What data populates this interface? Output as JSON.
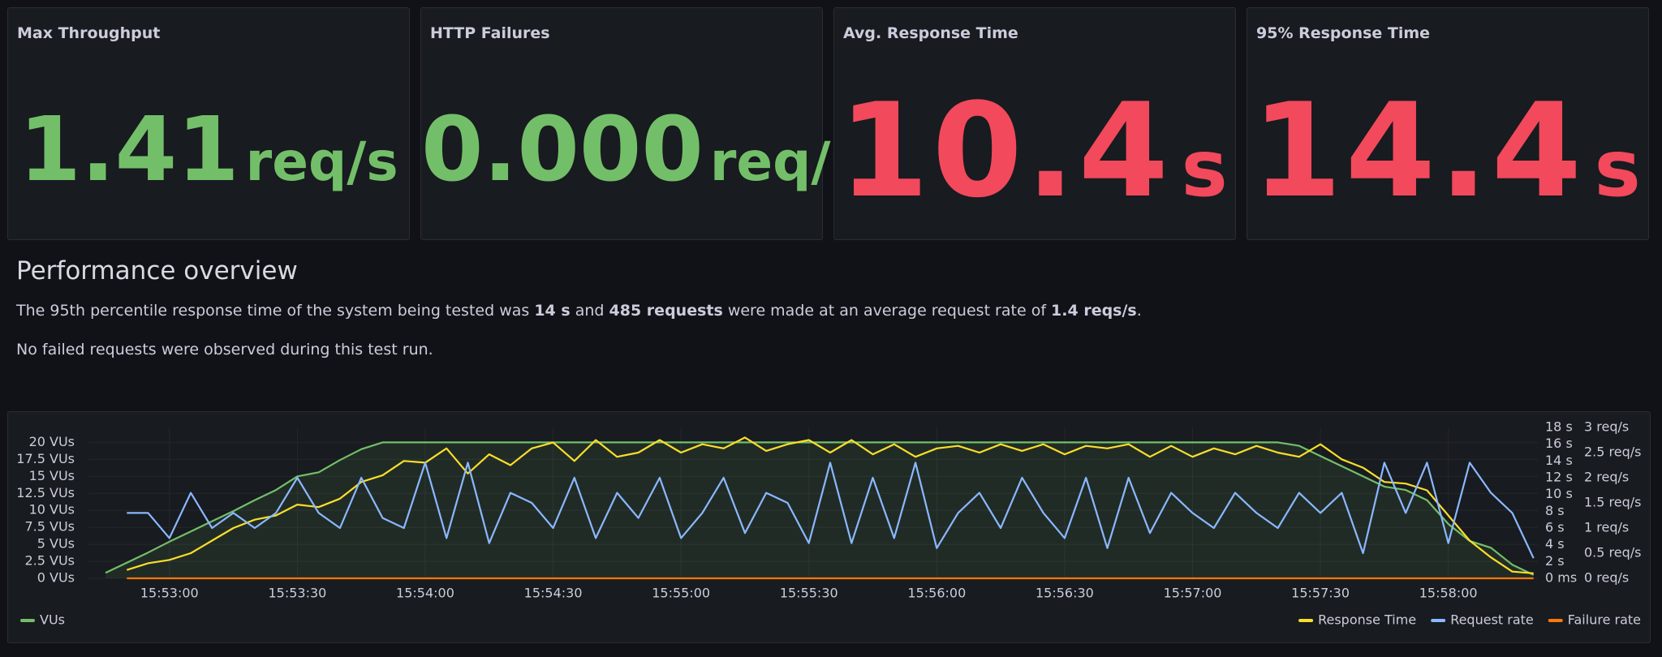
{
  "panels": [
    {
      "title": "Max Throughput",
      "value": "1.41",
      "unit": "req/s",
      "color": "#73bf69"
    },
    {
      "title": "HTTP Failures",
      "value": "0.000",
      "unit": "req/s",
      "color": "#73bf69"
    },
    {
      "title": "Avg. Response Time",
      "value": "10.4",
      "unit": "s",
      "color": "#f2495c"
    },
    {
      "title": "95% Response Time",
      "value": "14.4",
      "unit": "s",
      "color": "#f2495c"
    }
  ],
  "text": {
    "heading": "Performance overview",
    "paragraphs": [
      {
        "segments": [
          {
            "text": "The 95th percentile response time of the system being tested was ",
            "bold": false
          },
          {
            "text": "14 s",
            "bold": true
          },
          {
            "text": " and ",
            "bold": false
          },
          {
            "text": "485 requests",
            "bold": true
          },
          {
            "text": " were made at an average request rate of ",
            "bold": false
          },
          {
            "text": "1.4 reqs/s",
            "bold": true
          },
          {
            "text": ".",
            "bold": false
          }
        ]
      },
      {
        "segments": [
          {
            "text": "No failed requests were observed during this test run.",
            "bold": false
          }
        ]
      }
    ]
  },
  "chart_data": {
    "type": "line",
    "x": [
      "15:52:45",
      "15:52:50",
      "15:52:55",
      "15:53:00",
      "15:53:05",
      "15:53:10",
      "15:53:15",
      "15:53:20",
      "15:53:25",
      "15:53:30",
      "15:53:35",
      "15:53:40",
      "15:53:45",
      "15:53:50",
      "15:53:55",
      "15:54:00",
      "15:54:05",
      "15:54:10",
      "15:54:15",
      "15:54:20",
      "15:54:25",
      "15:54:30",
      "15:54:35",
      "15:54:40",
      "15:54:45",
      "15:54:50",
      "15:54:55",
      "15:55:00",
      "15:55:05",
      "15:55:10",
      "15:55:15",
      "15:55:20",
      "15:55:25",
      "15:55:30",
      "15:55:35",
      "15:55:40",
      "15:55:45",
      "15:55:50",
      "15:55:55",
      "15:56:00",
      "15:56:05",
      "15:56:10",
      "15:56:15",
      "15:56:20",
      "15:56:25",
      "15:56:30",
      "15:56:35",
      "15:56:40",
      "15:56:45",
      "15:56:50",
      "15:56:55",
      "15:57:00",
      "15:57:05",
      "15:57:10",
      "15:57:15",
      "15:57:20",
      "15:57:25",
      "15:57:30",
      "15:57:35",
      "15:57:40",
      "15:57:45",
      "15:57:50",
      "15:57:55",
      "15:58:00",
      "15:58:05",
      "15:58:10",
      "15:58:15",
      "15:58:20"
    ],
    "xlim": [
      "15:52:41",
      "15:58:21"
    ],
    "xticks": [
      "15:53:00",
      "15:53:30",
      "15:54:00",
      "15:54:30",
      "15:55:00",
      "15:55:30",
      "15:56:00",
      "15:56:30",
      "15:57:00",
      "15:57:30",
      "15:58:00"
    ],
    "ylim": [
      0,
      22.2
    ],
    "yticks": [
      {
        "value": 0,
        "label": "0 VUs"
      },
      {
        "value": 2.5,
        "label": "2.5 VUs"
      },
      {
        "value": 5,
        "label": "5 VUs"
      },
      {
        "value": 7.5,
        "label": "7.5 VUs"
      },
      {
        "value": 10,
        "label": "10 VUs"
      },
      {
        "value": 12.5,
        "label": "12.5 VUs"
      },
      {
        "value": 15,
        "label": "15 VUs"
      },
      {
        "value": 17.5,
        "label": "17.5 VUs"
      },
      {
        "value": 20,
        "label": "20 VUs"
      }
    ],
    "y2lim": [
      0,
      18
    ],
    "y2ticks": [
      {
        "value": 0,
        "label": "0 ms"
      },
      {
        "value": 2,
        "label": "2 s"
      },
      {
        "value": 4,
        "label": "4 s"
      },
      {
        "value": 6,
        "label": "6 s"
      },
      {
        "value": 8,
        "label": "8 s"
      },
      {
        "value": 10,
        "label": "10 s"
      },
      {
        "value": 12,
        "label": "12 s"
      },
      {
        "value": 14,
        "label": "14 s"
      },
      {
        "value": 16,
        "label": "16 s"
      },
      {
        "value": 18,
        "label": "18 s"
      }
    ],
    "y3lim": [
      0,
      3
    ],
    "y3ticks": [
      {
        "value": 0,
        "label": "0 req/s"
      },
      {
        "value": 0.5,
        "label": "0.5 req/s"
      },
      {
        "value": 1,
        "label": "1 req/s"
      },
      {
        "value": 1.5,
        "label": "1.5 req/s"
      },
      {
        "value": 2,
        "label": "2 req/s"
      },
      {
        "value": 2.5,
        "label": "2.5 req/s"
      },
      {
        "value": 3,
        "label": "3 req/s"
      }
    ],
    "grid": true,
    "series": [
      {
        "name": "VUs",
        "color": "#73bf69",
        "axis": "y",
        "fill": true,
        "values": [
          0.8,
          2.3,
          3.8,
          5.4,
          6.9,
          8.4,
          9.9,
          11.5,
          13,
          15,
          15.6,
          17.4,
          19,
          20,
          20,
          20,
          20,
          20,
          20,
          20,
          20,
          20,
          20,
          20,
          20,
          20,
          20,
          20,
          20,
          20,
          20,
          20,
          20,
          20,
          20,
          20,
          20,
          20,
          20,
          20,
          20,
          20,
          20,
          20,
          20,
          20,
          20,
          20,
          20,
          20,
          20,
          20,
          20,
          20,
          20,
          20,
          19.5,
          18,
          16.5,
          15,
          13.5,
          13,
          11.5,
          8,
          5.5,
          4.5,
          2,
          0.5
        ]
      },
      {
        "name": "Response Time",
        "color": "#fade2a",
        "axis": "y2",
        "fill": false,
        "values": [
          null,
          1.0,
          1.8,
          2.2,
          3.0,
          4.5,
          6.0,
          7.0,
          7.5,
          8.8,
          8.5,
          9.5,
          11.5,
          12.3,
          14.0,
          13.8,
          15.5,
          12.5,
          14.8,
          13.5,
          15.5,
          16.2,
          14.0,
          16.5,
          14.5,
          15.0,
          16.5,
          15.0,
          16.0,
          15.5,
          16.8,
          15.2,
          16.0,
          16.5,
          15.0,
          16.5,
          14.8,
          16.0,
          14.5,
          15.5,
          15.8,
          15.0,
          16.0,
          15.2,
          16.0,
          14.8,
          15.8,
          15.5,
          16.0,
          14.5,
          15.8,
          14.5,
          15.5,
          14.8,
          15.8,
          15.0,
          14.5,
          16.0,
          14.2,
          13.2,
          11.5,
          11.3,
          10.5,
          7.5,
          4.5,
          2.5,
          0.8,
          0.6
        ]
      },
      {
        "name": "Request rate",
        "color": "#8ab8ff",
        "axis": "y3",
        "fill": false,
        "values": [
          null,
          1.3,
          1.3,
          0.8,
          1.7,
          1.0,
          1.3,
          1.0,
          1.3,
          2.0,
          1.3,
          1.0,
          2.0,
          1.2,
          1.0,
          2.3,
          0.8,
          2.3,
          0.7,
          1.7,
          1.5,
          1.0,
          2.0,
          0.8,
          1.7,
          1.2,
          2.0,
          0.8,
          1.3,
          2.0,
          0.9,
          1.7,
          1.5,
          0.7,
          2.3,
          0.7,
          2.0,
          0.8,
          2.3,
          0.6,
          1.3,
          1.7,
          1.0,
          2.0,
          1.3,
          0.8,
          2.0,
          0.6,
          2.0,
          0.9,
          1.7,
          1.3,
          1.0,
          1.7,
          1.3,
          1.0,
          1.7,
          1.3,
          1.7,
          0.5,
          2.3,
          1.3,
          2.3,
          0.7,
          2.3,
          1.7,
          1.3,
          0.4
        ]
      },
      {
        "name": "Failure rate",
        "color": "#ff780a",
        "axis": "y3",
        "fill": false,
        "values": [
          null,
          0,
          0,
          0,
          0,
          0,
          0,
          0,
          0,
          0,
          0,
          0,
          0,
          0,
          0,
          0,
          0,
          0,
          0,
          0,
          0,
          0,
          0,
          0,
          0,
          0,
          0,
          0,
          0,
          0,
          0,
          0,
          0,
          0,
          0,
          0,
          0,
          0,
          0,
          0,
          0,
          0,
          0,
          0,
          0,
          0,
          0,
          0,
          0,
          0,
          0,
          0,
          0,
          0,
          0,
          0,
          0,
          0,
          0,
          0,
          0,
          0,
          0,
          0,
          0,
          0,
          0,
          0
        ]
      }
    ]
  }
}
